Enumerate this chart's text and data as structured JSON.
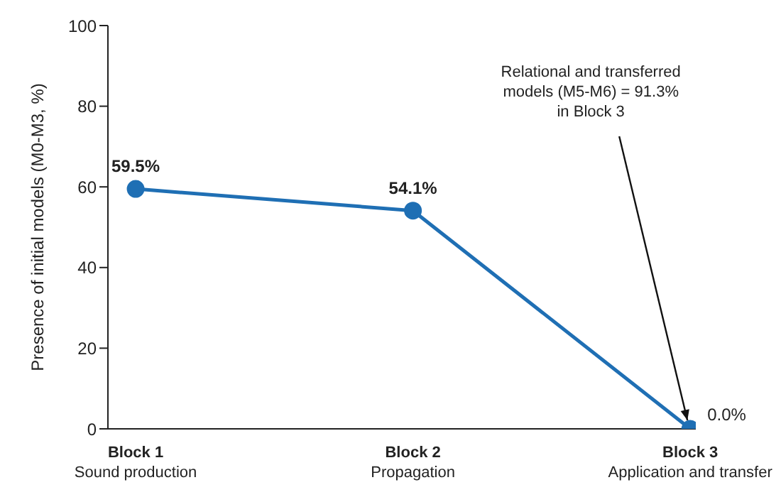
{
  "chart_data": {
    "type": "line",
    "ylabel": "Presence of initial models (M0-M3, %)",
    "categories": [
      "Block 1\nSound production",
      "Block 2\nPropagation",
      "Block 3\nApplication and transfer"
    ],
    "series": [
      {
        "color": "#1f6fb4",
        "values": [
          59.5,
          54.1,
          0.0
        ],
        "value_labels": [
          "59.5%",
          "54.1%",
          "0.0%"
        ]
      }
    ],
    "ylim": [
      0,
      100
    ],
    "yticks": [
      0,
      20,
      40,
      60,
      80,
      100
    ],
    "grid": false,
    "legend": false,
    "marker": "circle",
    "line_style": "solid",
    "annotations": [
      {
        "text": "Relational and transferred\nmodels (M5-M6) = 91.3%\nin Block 3",
        "x": "Block 3\nApplication and transfer",
        "y": 0
      }
    ]
  }
}
